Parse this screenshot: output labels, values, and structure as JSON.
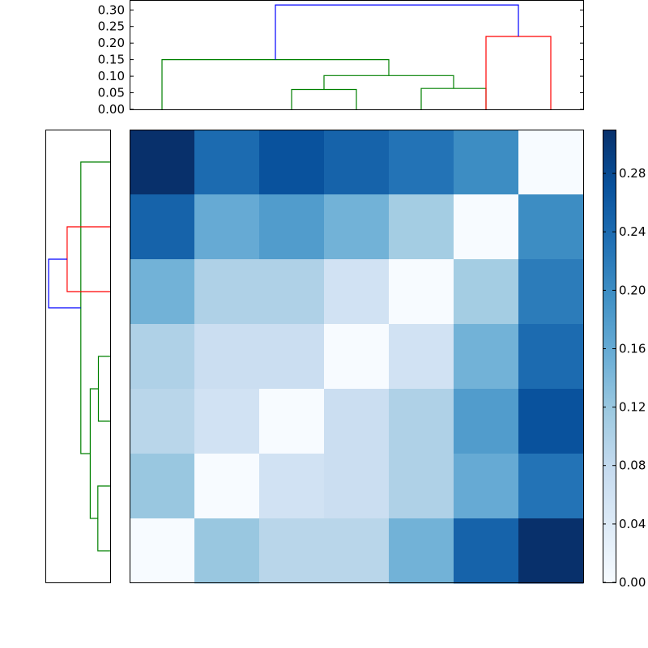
{
  "chart_data": {
    "type": "heatmap",
    "title": "",
    "xlabel": "",
    "ylabel": "",
    "colormap": "Blues",
    "matrix": [
      [
        0.31,
        0.24,
        0.27,
        0.25,
        0.23,
        0.2,
        0.0
      ],
      [
        0.25,
        0.16,
        0.18,
        0.15,
        0.11,
        0.0,
        0.2
      ],
      [
        0.15,
        0.1,
        0.1,
        0.06,
        0.0,
        0.11,
        0.22
      ],
      [
        0.1,
        0.07,
        0.07,
        0.0,
        0.06,
        0.15,
        0.24
      ],
      [
        0.09,
        0.06,
        0.0,
        0.07,
        0.1,
        0.18,
        0.27
      ],
      [
        0.12,
        0.0,
        0.06,
        0.07,
        0.1,
        0.16,
        0.23
      ],
      [
        0.0,
        0.12,
        0.09,
        0.09,
        0.15,
        0.25,
        0.31
      ]
    ],
    "colorbar": {
      "range": [
        0.0,
        0.31
      ],
      "ticks": [
        "0.00",
        "0.04",
        "0.08",
        "0.12",
        "0.16",
        "0.20",
        "0.24",
        "0.28"
      ],
      "tick_values": [
        0.0,
        0.04,
        0.08,
        0.12,
        0.16,
        0.2,
        0.24,
        0.28
      ]
    },
    "top_dendrogram": {
      "ylim": [
        0,
        0.33
      ],
      "ticks": [
        "0.00",
        "0.05",
        "0.10",
        "0.15",
        "0.20",
        "0.25",
        "0.30"
      ],
      "tick_values": [
        0.0,
        0.05,
        0.1,
        0.15,
        0.2,
        0.25,
        0.3
      ],
      "links": [
        {
          "x": [
            2.5,
            2.5,
            3.5,
            3.5
          ],
          "y": [
            0.0,
            0.06,
            0.06,
            0.0
          ],
          "color": "#008000"
        },
        {
          "x": [
            4.5,
            4.5,
            5.5,
            5.5
          ],
          "y": [
            0.0,
            0.063,
            0.063,
            0.0
          ],
          "color": "#008000"
        },
        {
          "x": [
            3.0,
            3.0,
            5.0,
            5.0
          ],
          "y": [
            0.06,
            0.102,
            0.102,
            0.063
          ],
          "color": "#008000"
        },
        {
          "x": [
            0.5,
            0.5,
            4.0,
            4.0
          ],
          "y": [
            0.0,
            0.15,
            0.15,
            0.102
          ],
          "color": "#008000"
        },
        {
          "x": [
            5.5,
            5.5,
            6.5,
            6.5
          ],
          "y": [
            0.0,
            0.22,
            0.22,
            0.0
          ],
          "color": "#ff0000"
        },
        {
          "x": [
            2.25,
            2.25,
            6.0,
            6.0
          ],
          "y": [
            0.15,
            0.315,
            0.315,
            0.22
          ],
          "color": "#0000ff"
        }
      ]
    },
    "left_dendrogram": {
      "links": [
        {
          "y": [
            3.5,
            3.5,
            2.5,
            2.5
          ],
          "d": [
            0.0,
            0.06,
            0.06,
            0.0
          ],
          "color": "#008000"
        },
        {
          "y": [
            1.5,
            1.5,
            0.5,
            0.5
          ],
          "d": [
            0.0,
            0.063,
            0.063,
            0.0
          ],
          "color": "#008000"
        },
        {
          "y": [
            3.0,
            3.0,
            1.0,
            1.0
          ],
          "d": [
            0.06,
            0.102,
            0.102,
            0.063
          ],
          "color": "#008000"
        },
        {
          "y": [
            6.5,
            6.5,
            2.0,
            2.0
          ],
          "d": [
            0.0,
            0.15,
            0.15,
            0.102
          ],
          "color": "#008000"
        },
        {
          "y": [
            5.5,
            5.5,
            4.5,
            4.5
          ],
          "d": [
            0.0,
            0.22,
            0.22,
            0.0
          ],
          "color": "#ff0000"
        },
        {
          "y": [
            4.25,
            4.25,
            5.0,
            5.0
          ],
          "d": [
            0.15,
            0.315,
            0.315,
            0.22
          ],
          "color": "#0000ff"
        }
      ]
    }
  }
}
